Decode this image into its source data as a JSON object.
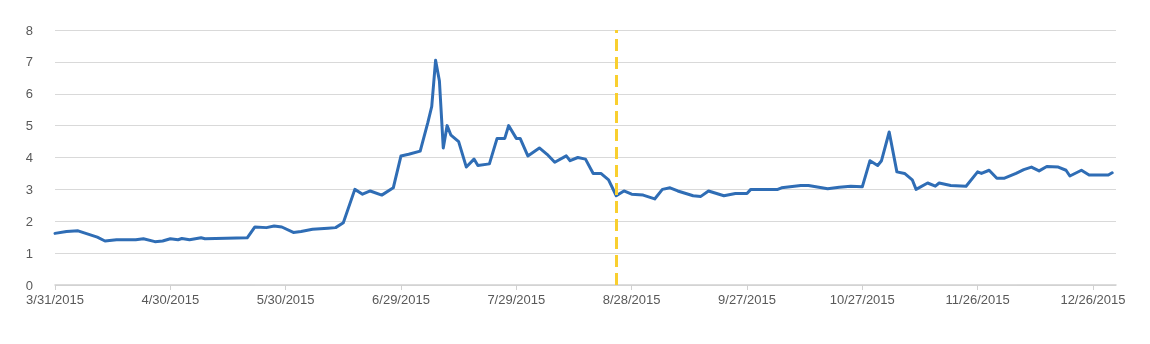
{
  "chart_data": {
    "type": "line",
    "x": [
      "2015-03-31",
      "2015-04-03",
      "2015-04-06",
      "2015-04-08",
      "2015-04-11",
      "2015-04-13",
      "2015-04-16",
      "2015-04-21",
      "2015-04-23",
      "2015-04-26",
      "2015-04-28",
      "2015-04-30",
      "2015-05-02",
      "2015-05-03",
      "2015-05-05",
      "2015-05-08",
      "2015-05-09",
      "2015-05-20",
      "2015-05-22",
      "2015-05-25",
      "2015-05-27",
      "2015-05-29",
      "2015-06-01",
      "2015-06-03",
      "2015-06-06",
      "2015-06-10",
      "2015-06-12",
      "2015-06-14",
      "2015-06-17",
      "2015-06-19",
      "2015-06-21",
      "2015-06-24",
      "2015-06-27",
      "2015-06-29",
      "2015-07-01",
      "2015-07-04",
      "2015-07-06",
      "2015-07-07",
      "2015-07-08",
      "2015-07-09",
      "2015-07-10",
      "2015-07-11",
      "2015-07-12",
      "2015-07-14",
      "2015-07-16",
      "2015-07-18",
      "2015-07-19",
      "2015-07-22",
      "2015-07-24",
      "2015-07-26",
      "2015-07-27",
      "2015-07-29",
      "2015-07-30",
      "2015-08-01",
      "2015-08-04",
      "2015-08-06",
      "2015-08-08",
      "2015-08-11",
      "2015-08-12",
      "2015-08-14",
      "2015-08-16",
      "2015-08-18",
      "2015-08-20",
      "2015-08-22",
      "2015-08-24",
      "2015-08-26",
      "2015-08-28",
      "2015-08-31",
      "2015-09-03",
      "2015-09-05",
      "2015-09-07",
      "2015-09-09",
      "2015-09-13",
      "2015-09-15",
      "2015-09-17",
      "2015-09-21",
      "2015-09-24",
      "2015-09-27",
      "2015-09-28",
      "2015-10-05",
      "2015-10-06",
      "2015-10-11",
      "2015-10-13",
      "2015-10-18",
      "2015-10-21",
      "2015-10-24",
      "2015-10-27",
      "2015-10-29",
      "2015-10-31",
      "2015-11-01",
      "2015-11-03",
      "2015-11-05",
      "2015-11-07",
      "2015-11-09",
      "2015-11-10",
      "2015-11-13",
      "2015-11-15",
      "2015-11-16",
      "2015-11-19",
      "2015-11-23",
      "2015-11-26",
      "2015-11-27",
      "2015-11-29",
      "2015-12-01",
      "2015-12-03",
      "2015-12-06",
      "2015-12-08",
      "2015-12-10",
      "2015-12-12",
      "2015-12-14",
      "2015-12-17",
      "2015-12-19",
      "2015-12-20",
      "2015-12-23",
      "2015-12-25",
      "2015-12-27",
      "2015-12-30",
      "2015-12-31"
    ],
    "series": [
      {
        "color": "#2f6db5",
        "values": [
          1.62,
          1.68,
          1.7,
          1.62,
          1.5,
          1.38,
          1.42,
          1.42,
          1.45,
          1.36,
          1.38,
          1.45,
          1.42,
          1.46,
          1.42,
          1.48,
          1.45,
          1.48,
          1.82,
          1.8,
          1.85,
          1.82,
          1.65,
          1.68,
          1.75,
          1.78,
          1.8,
          1.95,
          3.0,
          2.85,
          2.95,
          2.82,
          3.05,
          4.05,
          4.1,
          4.2,
          5.1,
          5.6,
          7.05,
          6.4,
          4.3,
          5.0,
          4.7,
          4.5,
          3.7,
          3.95,
          3.75,
          3.8,
          4.6,
          4.6,
          5.0,
          4.6,
          4.6,
          4.05,
          4.3,
          4.1,
          3.85,
          4.05,
          3.9,
          4.0,
          3.95,
          3.5,
          3.5,
          3.3,
          2.8,
          2.95,
          2.85,
          2.82,
          2.7,
          3.0,
          3.05,
          2.95,
          2.8,
          2.78,
          2.95,
          2.8,
          2.87,
          2.87,
          3.0,
          3.0,
          3.05,
          3.12,
          3.12,
          3.02,
          3.07,
          3.1,
          3.08,
          3.9,
          3.75,
          3.9,
          4.8,
          3.55,
          3.5,
          3.3,
          3.0,
          3.2,
          3.1,
          3.2,
          3.12,
          3.1,
          3.55,
          3.5,
          3.6,
          3.35,
          3.35,
          3.5,
          3.62,
          3.7,
          3.58,
          3.72,
          3.7,
          3.6,
          3.42,
          3.6,
          3.45,
          3.45,
          3.45,
          3.52
        ]
      }
    ],
    "xlim": [
      "2015-03-31",
      "2016-01-01"
    ],
    "xticks": [
      {
        "value": "2015-03-31",
        "label": "3/31/2015"
      },
      {
        "value": "2015-04-30",
        "label": "4/30/2015"
      },
      {
        "value": "2015-05-30",
        "label": "5/30/2015"
      },
      {
        "value": "2015-06-29",
        "label": "6/29/2015"
      },
      {
        "value": "2015-07-29",
        "label": "7/29/2015"
      },
      {
        "value": "2015-08-28",
        "label": "8/28/2015"
      },
      {
        "value": "2015-09-27",
        "label": "9/27/2015"
      },
      {
        "value": "2015-10-27",
        "label": "10/27/2015"
      },
      {
        "value": "2015-11-26",
        "label": "11/26/2015"
      },
      {
        "value": "2015-12-26",
        "label": "12/26/2015"
      }
    ],
    "ylim": [
      0,
      8
    ],
    "yticks": [
      0,
      1,
      2,
      3,
      4,
      5,
      6,
      7,
      8
    ],
    "ref_lines": [
      {
        "axis": "x",
        "value": "2015-08-24",
        "color": "#f9cf2f",
        "line_style": "dashed"
      }
    ],
    "grid": "y",
    "marker": "none",
    "line_style": "solid"
  }
}
